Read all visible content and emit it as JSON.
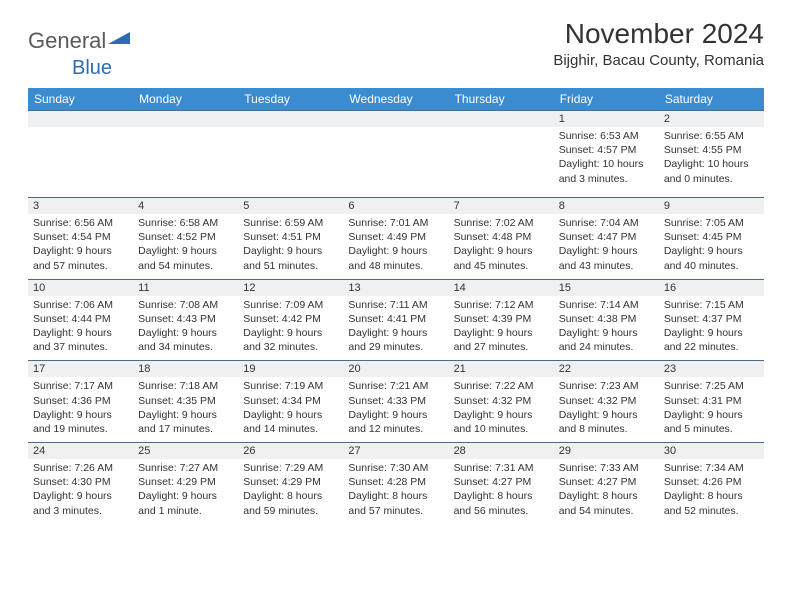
{
  "logo": {
    "word1": "General",
    "word2": "Blue"
  },
  "title": "November 2024",
  "location": "Bijghir, Bacau County, Romania",
  "colors": {
    "header_bg": "#3b8bd0",
    "header_text": "#ffffff",
    "daynum_bg": "#eef0f2",
    "border": "#4a6a8a",
    "text": "#333333",
    "logo_gray": "#5a5a5a",
    "logo_blue": "#2a6db5"
  },
  "weekdays": [
    "Sunday",
    "Monday",
    "Tuesday",
    "Wednesday",
    "Thursday",
    "Friday",
    "Saturday"
  ],
  "weeks": [
    [
      null,
      null,
      null,
      null,
      null,
      {
        "n": "1",
        "sr": "6:53 AM",
        "ss": "4:57 PM",
        "dl": "10 hours and 3 minutes."
      },
      {
        "n": "2",
        "sr": "6:55 AM",
        "ss": "4:55 PM",
        "dl": "10 hours and 0 minutes."
      }
    ],
    [
      {
        "n": "3",
        "sr": "6:56 AM",
        "ss": "4:54 PM",
        "dl": "9 hours and 57 minutes."
      },
      {
        "n": "4",
        "sr": "6:58 AM",
        "ss": "4:52 PM",
        "dl": "9 hours and 54 minutes."
      },
      {
        "n": "5",
        "sr": "6:59 AM",
        "ss": "4:51 PM",
        "dl": "9 hours and 51 minutes."
      },
      {
        "n": "6",
        "sr": "7:01 AM",
        "ss": "4:49 PM",
        "dl": "9 hours and 48 minutes."
      },
      {
        "n": "7",
        "sr": "7:02 AM",
        "ss": "4:48 PM",
        "dl": "9 hours and 45 minutes."
      },
      {
        "n": "8",
        "sr": "7:04 AM",
        "ss": "4:47 PM",
        "dl": "9 hours and 43 minutes."
      },
      {
        "n": "9",
        "sr": "7:05 AM",
        "ss": "4:45 PM",
        "dl": "9 hours and 40 minutes."
      }
    ],
    [
      {
        "n": "10",
        "sr": "7:06 AM",
        "ss": "4:44 PM",
        "dl": "9 hours and 37 minutes."
      },
      {
        "n": "11",
        "sr": "7:08 AM",
        "ss": "4:43 PM",
        "dl": "9 hours and 34 minutes."
      },
      {
        "n": "12",
        "sr": "7:09 AM",
        "ss": "4:42 PM",
        "dl": "9 hours and 32 minutes."
      },
      {
        "n": "13",
        "sr": "7:11 AM",
        "ss": "4:41 PM",
        "dl": "9 hours and 29 minutes."
      },
      {
        "n": "14",
        "sr": "7:12 AM",
        "ss": "4:39 PM",
        "dl": "9 hours and 27 minutes."
      },
      {
        "n": "15",
        "sr": "7:14 AM",
        "ss": "4:38 PM",
        "dl": "9 hours and 24 minutes."
      },
      {
        "n": "16",
        "sr": "7:15 AM",
        "ss": "4:37 PM",
        "dl": "9 hours and 22 minutes."
      }
    ],
    [
      {
        "n": "17",
        "sr": "7:17 AM",
        "ss": "4:36 PM",
        "dl": "9 hours and 19 minutes."
      },
      {
        "n": "18",
        "sr": "7:18 AM",
        "ss": "4:35 PM",
        "dl": "9 hours and 17 minutes."
      },
      {
        "n": "19",
        "sr": "7:19 AM",
        "ss": "4:34 PM",
        "dl": "9 hours and 14 minutes."
      },
      {
        "n": "20",
        "sr": "7:21 AM",
        "ss": "4:33 PM",
        "dl": "9 hours and 12 minutes."
      },
      {
        "n": "21",
        "sr": "7:22 AM",
        "ss": "4:32 PM",
        "dl": "9 hours and 10 minutes."
      },
      {
        "n": "22",
        "sr": "7:23 AM",
        "ss": "4:32 PM",
        "dl": "9 hours and 8 minutes."
      },
      {
        "n": "23",
        "sr": "7:25 AM",
        "ss": "4:31 PM",
        "dl": "9 hours and 5 minutes."
      }
    ],
    [
      {
        "n": "24",
        "sr": "7:26 AM",
        "ss": "4:30 PM",
        "dl": "9 hours and 3 minutes."
      },
      {
        "n": "25",
        "sr": "7:27 AM",
        "ss": "4:29 PM",
        "dl": "9 hours and 1 minute."
      },
      {
        "n": "26",
        "sr": "7:29 AM",
        "ss": "4:29 PM",
        "dl": "8 hours and 59 minutes."
      },
      {
        "n": "27",
        "sr": "7:30 AM",
        "ss": "4:28 PM",
        "dl": "8 hours and 57 minutes."
      },
      {
        "n": "28",
        "sr": "7:31 AM",
        "ss": "4:27 PM",
        "dl": "8 hours and 56 minutes."
      },
      {
        "n": "29",
        "sr": "7:33 AM",
        "ss": "4:27 PM",
        "dl": "8 hours and 54 minutes."
      },
      {
        "n": "30",
        "sr": "7:34 AM",
        "ss": "4:26 PM",
        "dl": "8 hours and 52 minutes."
      }
    ]
  ],
  "labels": {
    "sunrise": "Sunrise:",
    "sunset": "Sunset:",
    "daylight": "Daylight:"
  }
}
